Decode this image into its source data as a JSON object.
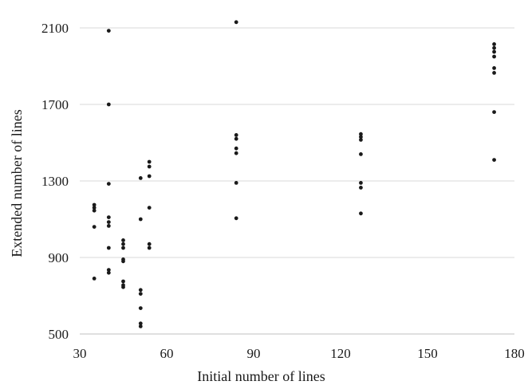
{
  "chart_data": {
    "type": "scatter",
    "title": "",
    "xlabel": "Initial number of lines",
    "ylabel": "Extended number of lines",
    "xlim": [
      30,
      180
    ],
    "ylim": [
      500,
      2200
    ],
    "xticks": [
      30,
      60,
      90,
      120,
      150,
      180
    ],
    "yticks": [
      500,
      900,
      1300,
      1700,
      2100
    ],
    "grid": "horizontal",
    "legend": "none",
    "colors": {
      "point": "#1a1a1a",
      "grid": "#d9d9d9",
      "axis": "#bfbfbf"
    },
    "series": [
      {
        "points": [
          [
            35,
            1175
          ],
          [
            35,
            1160
          ],
          [
            35,
            1145
          ],
          [
            35,
            1060
          ],
          [
            35,
            790
          ],
          [
            40,
            2085
          ],
          [
            40,
            1700
          ],
          [
            40,
            1285
          ],
          [
            40,
            1110
          ],
          [
            40,
            1085
          ],
          [
            40,
            1065
          ],
          [
            40,
            950
          ],
          [
            40,
            835
          ],
          [
            40,
            820
          ],
          [
            45,
            990
          ],
          [
            45,
            970
          ],
          [
            45,
            950
          ],
          [
            45,
            890
          ],
          [
            45,
            880
          ],
          [
            45,
            775
          ],
          [
            45,
            755
          ],
          [
            45,
            745
          ],
          [
            51,
            1315
          ],
          [
            51,
            1100
          ],
          [
            51,
            730
          ],
          [
            51,
            710
          ],
          [
            51,
            635
          ],
          [
            51,
            555
          ],
          [
            51,
            540
          ],
          [
            54,
            1400
          ],
          [
            54,
            1375
          ],
          [
            54,
            1325
          ],
          [
            54,
            1160
          ],
          [
            54,
            970
          ],
          [
            54,
            950
          ],
          [
            84,
            2130
          ],
          [
            84,
            1540
          ],
          [
            84,
            1520
          ],
          [
            84,
            1470
          ],
          [
            84,
            1445
          ],
          [
            84,
            1290
          ],
          [
            84,
            1105
          ],
          [
            127,
            1545
          ],
          [
            127,
            1530
          ],
          [
            127,
            1515
          ],
          [
            127,
            1440
          ],
          [
            127,
            1290
          ],
          [
            127,
            1265
          ],
          [
            127,
            1130
          ],
          [
            173,
            2015
          ],
          [
            173,
            1995
          ],
          [
            173,
            1975
          ],
          [
            173,
            1950
          ],
          [
            173,
            1890
          ],
          [
            173,
            1865
          ],
          [
            173,
            1660
          ],
          [
            173,
            1410
          ]
        ]
      }
    ]
  }
}
